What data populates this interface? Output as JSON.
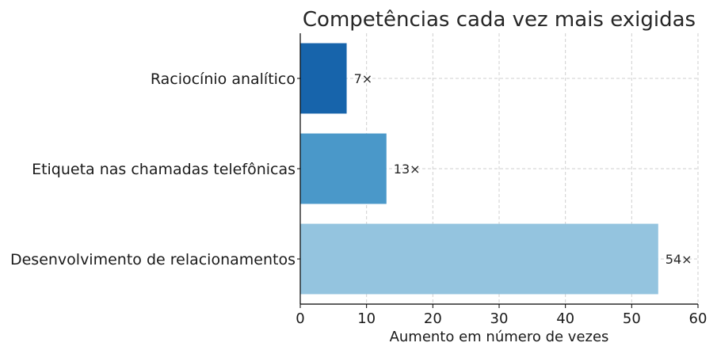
{
  "chart_data": {
    "type": "bar",
    "orientation": "horizontal",
    "title": "Competências cada vez mais exigidas",
    "xlabel": "Aumento em número de vezes",
    "ylabel": "",
    "categories": [
      "Raciocínio analítico",
      "Etiqueta nas chamadas telefônicas",
      "Desenvolvimento de relacionamentos"
    ],
    "values": [
      7,
      13,
      54
    ],
    "value_labels": [
      "7×",
      "13×",
      "54×"
    ],
    "colors": [
      "#1764ab",
      "#4a98c9",
      "#94c4df"
    ],
    "xlim": [
      0,
      60
    ],
    "xticks": [
      0,
      10,
      20,
      30,
      40,
      50,
      60
    ],
    "grid": true
  }
}
